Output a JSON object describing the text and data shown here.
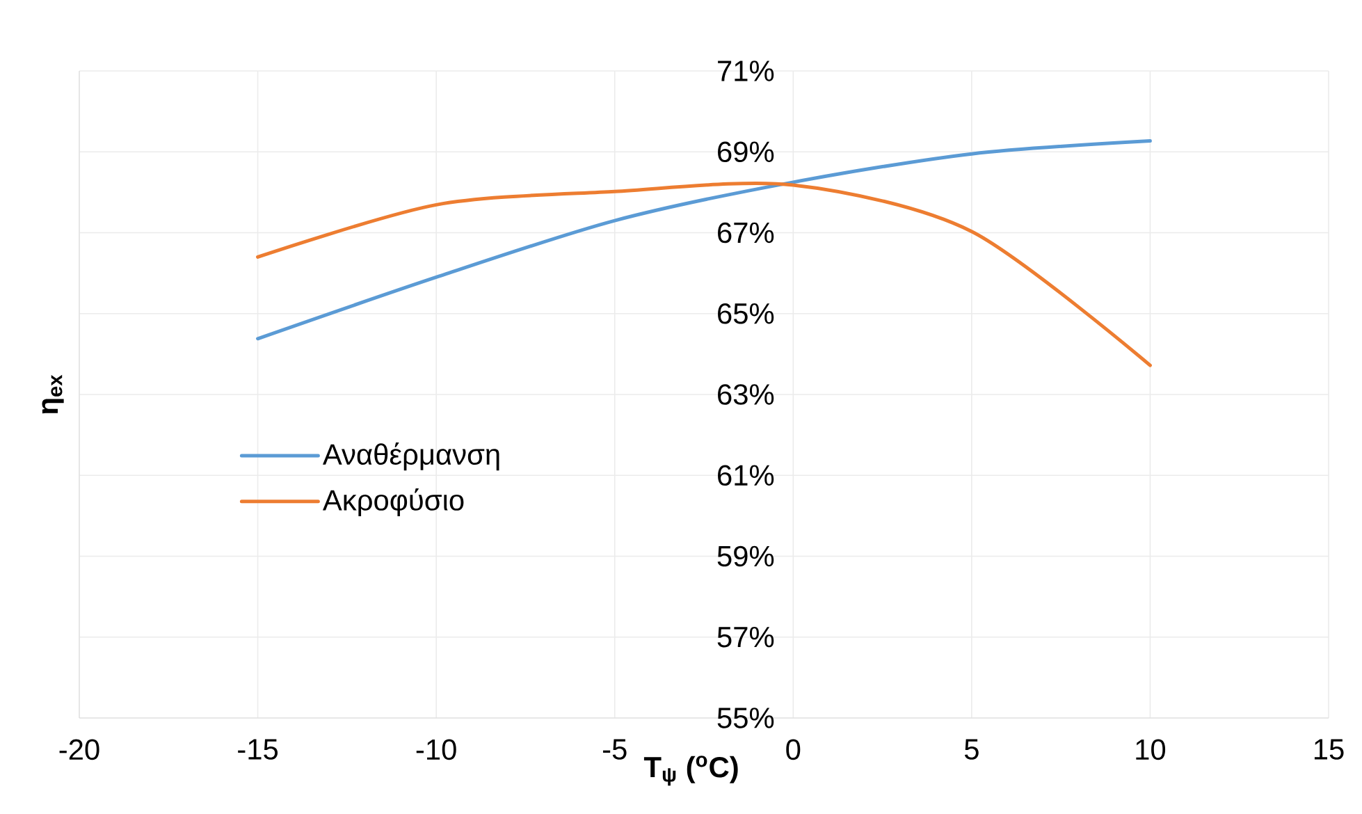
{
  "chart_data": {
    "type": "line",
    "xlabel": "T$_{ψ}$ ($^{o}$C)",
    "ylabel": "η$_{ex}$",
    "x": [
      -15,
      -10,
      -5,
      0,
      5,
      10
    ],
    "series": [
      {
        "name": "Αναθέρμανση",
        "color": "#5b9bd5",
        "values": [
          64.38,
          65.9,
          67.3,
          68.25,
          68.95,
          69.27
        ]
      },
      {
        "name": "Ακροφύσιο",
        "color": "#ed7d31",
        "values": [
          66.4,
          67.69,
          68.02,
          68.18,
          67.03,
          63.72
        ]
      }
    ],
    "xlim": [
      -20,
      15
    ],
    "xticks": [
      -20,
      -15,
      -10,
      -5,
      0,
      5,
      10,
      15
    ],
    "ylim": [
      55,
      71
    ],
    "yticks": [
      {
        "value": 55,
        "label": "55%"
      },
      {
        "value": 57,
        "label": "57%"
      },
      {
        "value": 59,
        "label": "59%"
      },
      {
        "value": 61,
        "label": "61%"
      },
      {
        "value": 63,
        "label": "63%"
      },
      {
        "value": 65,
        "label": "65%"
      },
      {
        "value": 67,
        "label": "67%"
      },
      {
        "value": 69,
        "label": "69%"
      },
      {
        "value": 71,
        "label": "71%"
      }
    ],
    "grid": true,
    "legend": "left"
  }
}
